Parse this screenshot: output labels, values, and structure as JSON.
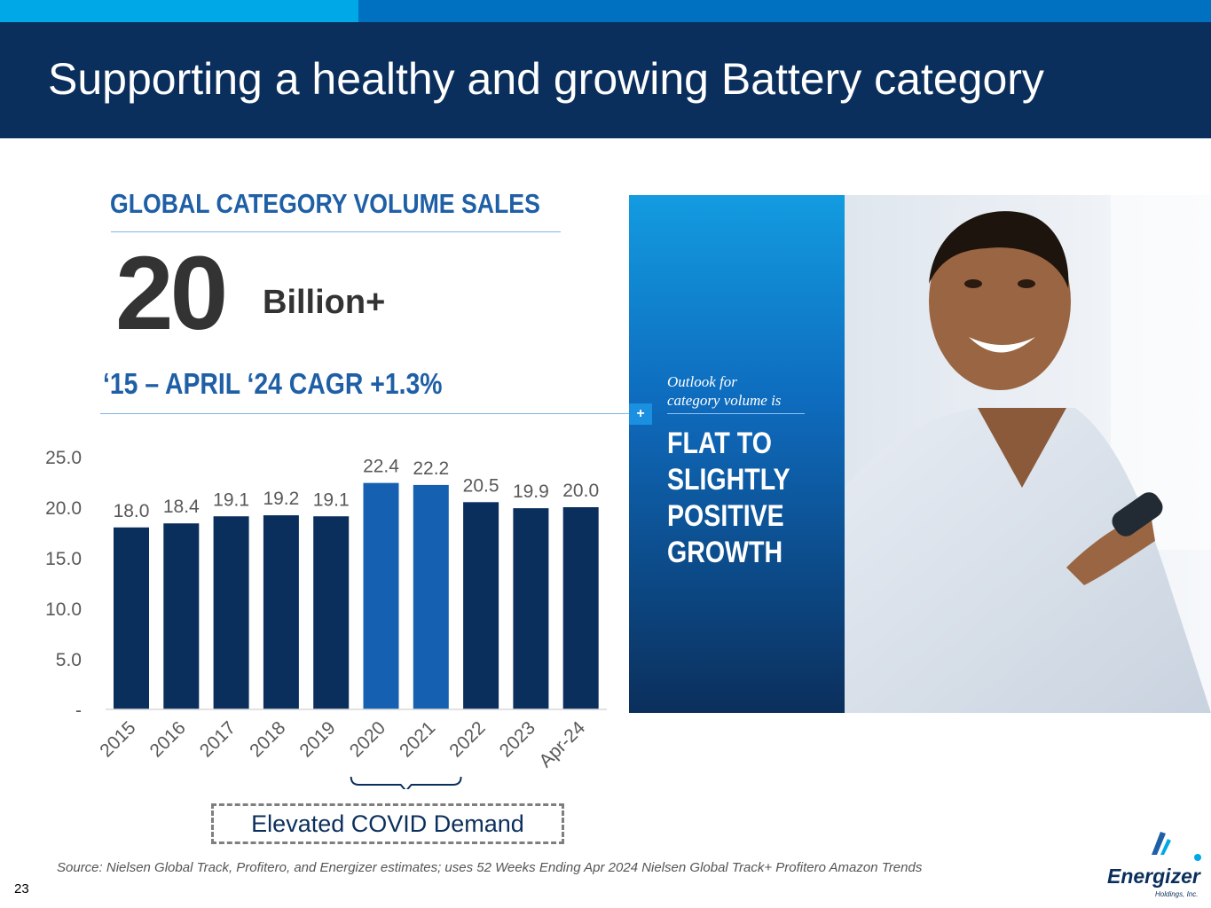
{
  "header": {
    "title": "Supporting a healthy and growing Battery category"
  },
  "left": {
    "heading": "GLOBAL CATEGORY VOLUME SALES",
    "big_number": "20",
    "big_unit": "Billion+",
    "cagr": "‘15 – APRIL ‘24 CAGR +1.3%"
  },
  "chart_data": {
    "type": "bar",
    "title": "",
    "xlabel": "",
    "ylabel": "",
    "ylim": [
      0,
      25
    ],
    "categories": [
      "2015",
      "2016",
      "2017",
      "2018",
      "2019",
      "2020",
      "2021",
      "2022",
      "2023",
      "Apr-24"
    ],
    "values": [
      18.0,
      18.4,
      19.1,
      19.2,
      19.1,
      22.4,
      22.2,
      20.5,
      19.9,
      20.0
    ],
    "value_labels": [
      "18.0",
      "18.4",
      "19.1",
      "19.2",
      "19.1",
      "22.4",
      "22.2",
      "20.5",
      "19.9",
      "20.0"
    ],
    "highlighted": [
      "2020",
      "2021"
    ],
    "y_ticks": [
      0,
      5,
      10,
      15,
      20,
      25
    ],
    "y_tick_labels": [
      "-",
      "5.0",
      "10.0",
      "15.0",
      "20.0",
      "25.0"
    ],
    "grid": false,
    "colors": {
      "default": "#0b2f5c",
      "highlight": "#1560b0",
      "axis": "#d9d9d9",
      "label": "#595959"
    },
    "annotation": "Elevated COVID Demand"
  },
  "panel": {
    "outlook": "Outlook for\ncategory volume is",
    "growth": "FLAT TO\nSLIGHTLY\nPOSITIVE\nGROWTH",
    "marker": "+"
  },
  "footer": {
    "source": "Source: Nielsen Global Track, Profitero, and Energizer estimates; uses 52 Weeks Ending Apr 2024 Nielsen Global Track+ Profitero Amazon Trends",
    "page_number": "23",
    "logo_text": "Energizer",
    "logo_subtext": "Holdings, Inc."
  },
  "colors": {
    "header_bg": "#0b2f5c",
    "accent_light": "#00a8e8",
    "accent_mid": "#0070c0",
    "heading_blue": "#1f5fa6"
  }
}
